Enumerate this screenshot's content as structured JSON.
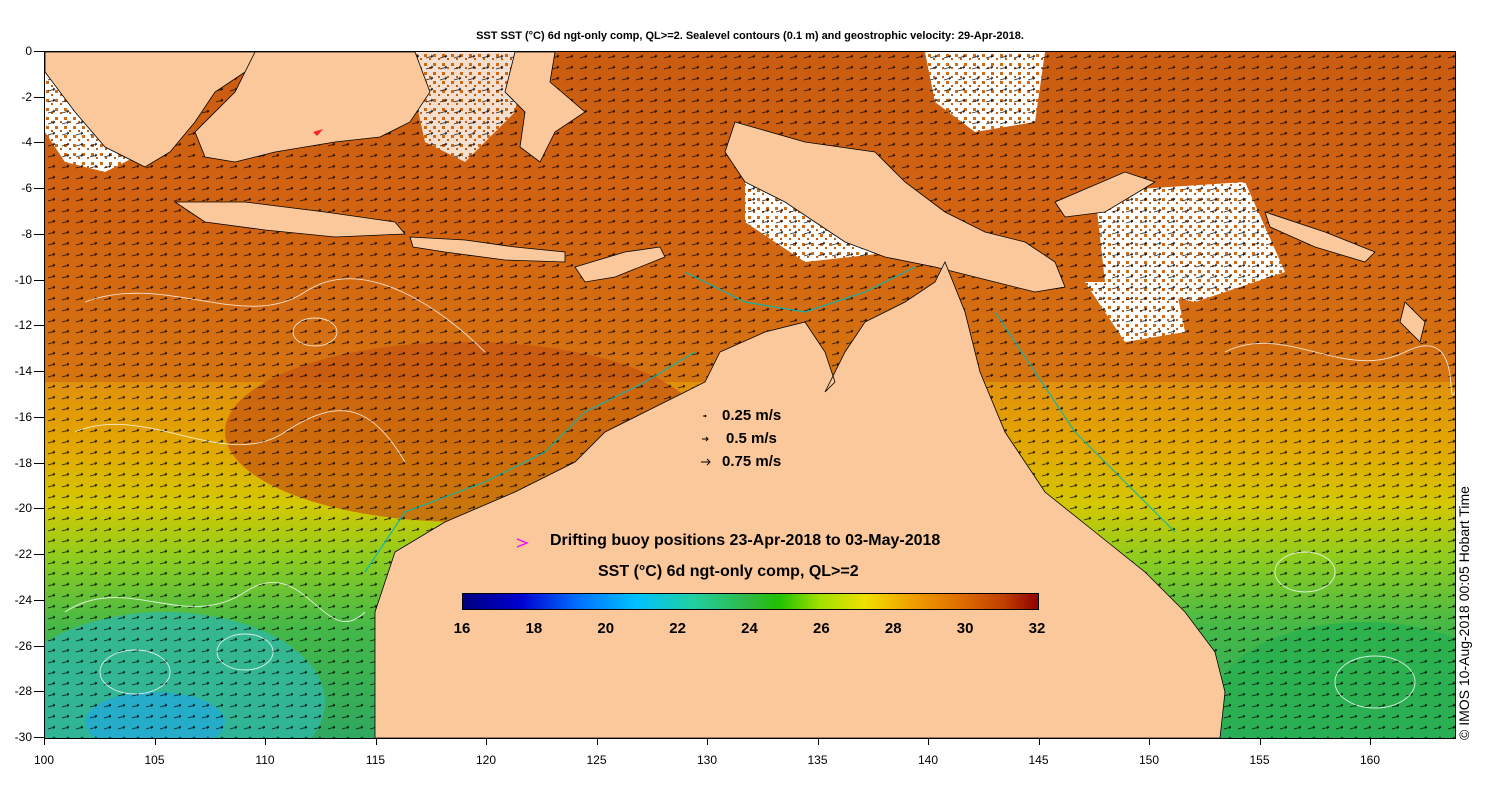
{
  "title": "SST SST (°C) 6d ngt-only comp, QL>=2. Sealevel contours (0.1 m) and geostrophic velocity: 29-Apr-2018.",
  "colors": {
    "land": "#fbc89b",
    "coastline": "#00b8b8",
    "no_data": "#ffffff",
    "buoy_marker": "#ff00ff"
  },
  "axes": {
    "y_ticks": [
      "0",
      "-2",
      "-4",
      "-6",
      "-8",
      "-10",
      "-12",
      "-14",
      "-16",
      "-18",
      "-20",
      "-22",
      "-24",
      "-26",
      "-28",
      "-30"
    ],
    "x_ticks": [
      "100",
      "105",
      "110",
      "115",
      "120",
      "125",
      "130",
      "135",
      "140",
      "145",
      "150",
      "155",
      "160"
    ],
    "lat_range": [
      0,
      -30
    ],
    "lon_range": [
      100,
      164
    ]
  },
  "velocity_legend": {
    "items": [
      {
        "icon": "arrow-small-icon",
        "label": "0.25 m/s"
      },
      {
        "icon": "arrow-medium-icon",
        "label": "0.5 m/s"
      },
      {
        "icon": "arrow-large-icon",
        "label": "0.75 m/s"
      }
    ]
  },
  "buoy_legend": {
    "icon": "buoy-arrow-icon",
    "label": "Drifting buoy positions 23-Apr-2018 to 03-May-2018"
  },
  "colorbar": {
    "label": "SST (°C) 6d ngt-only comp, QL>=2",
    "ticks": [
      "16",
      "18",
      "20",
      "22",
      "24",
      "26",
      "28",
      "30",
      "32"
    ],
    "range": [
      16,
      32
    ]
  },
  "credit": "© IMOS 10-Aug-2018 00:05 Hobart Time"
}
